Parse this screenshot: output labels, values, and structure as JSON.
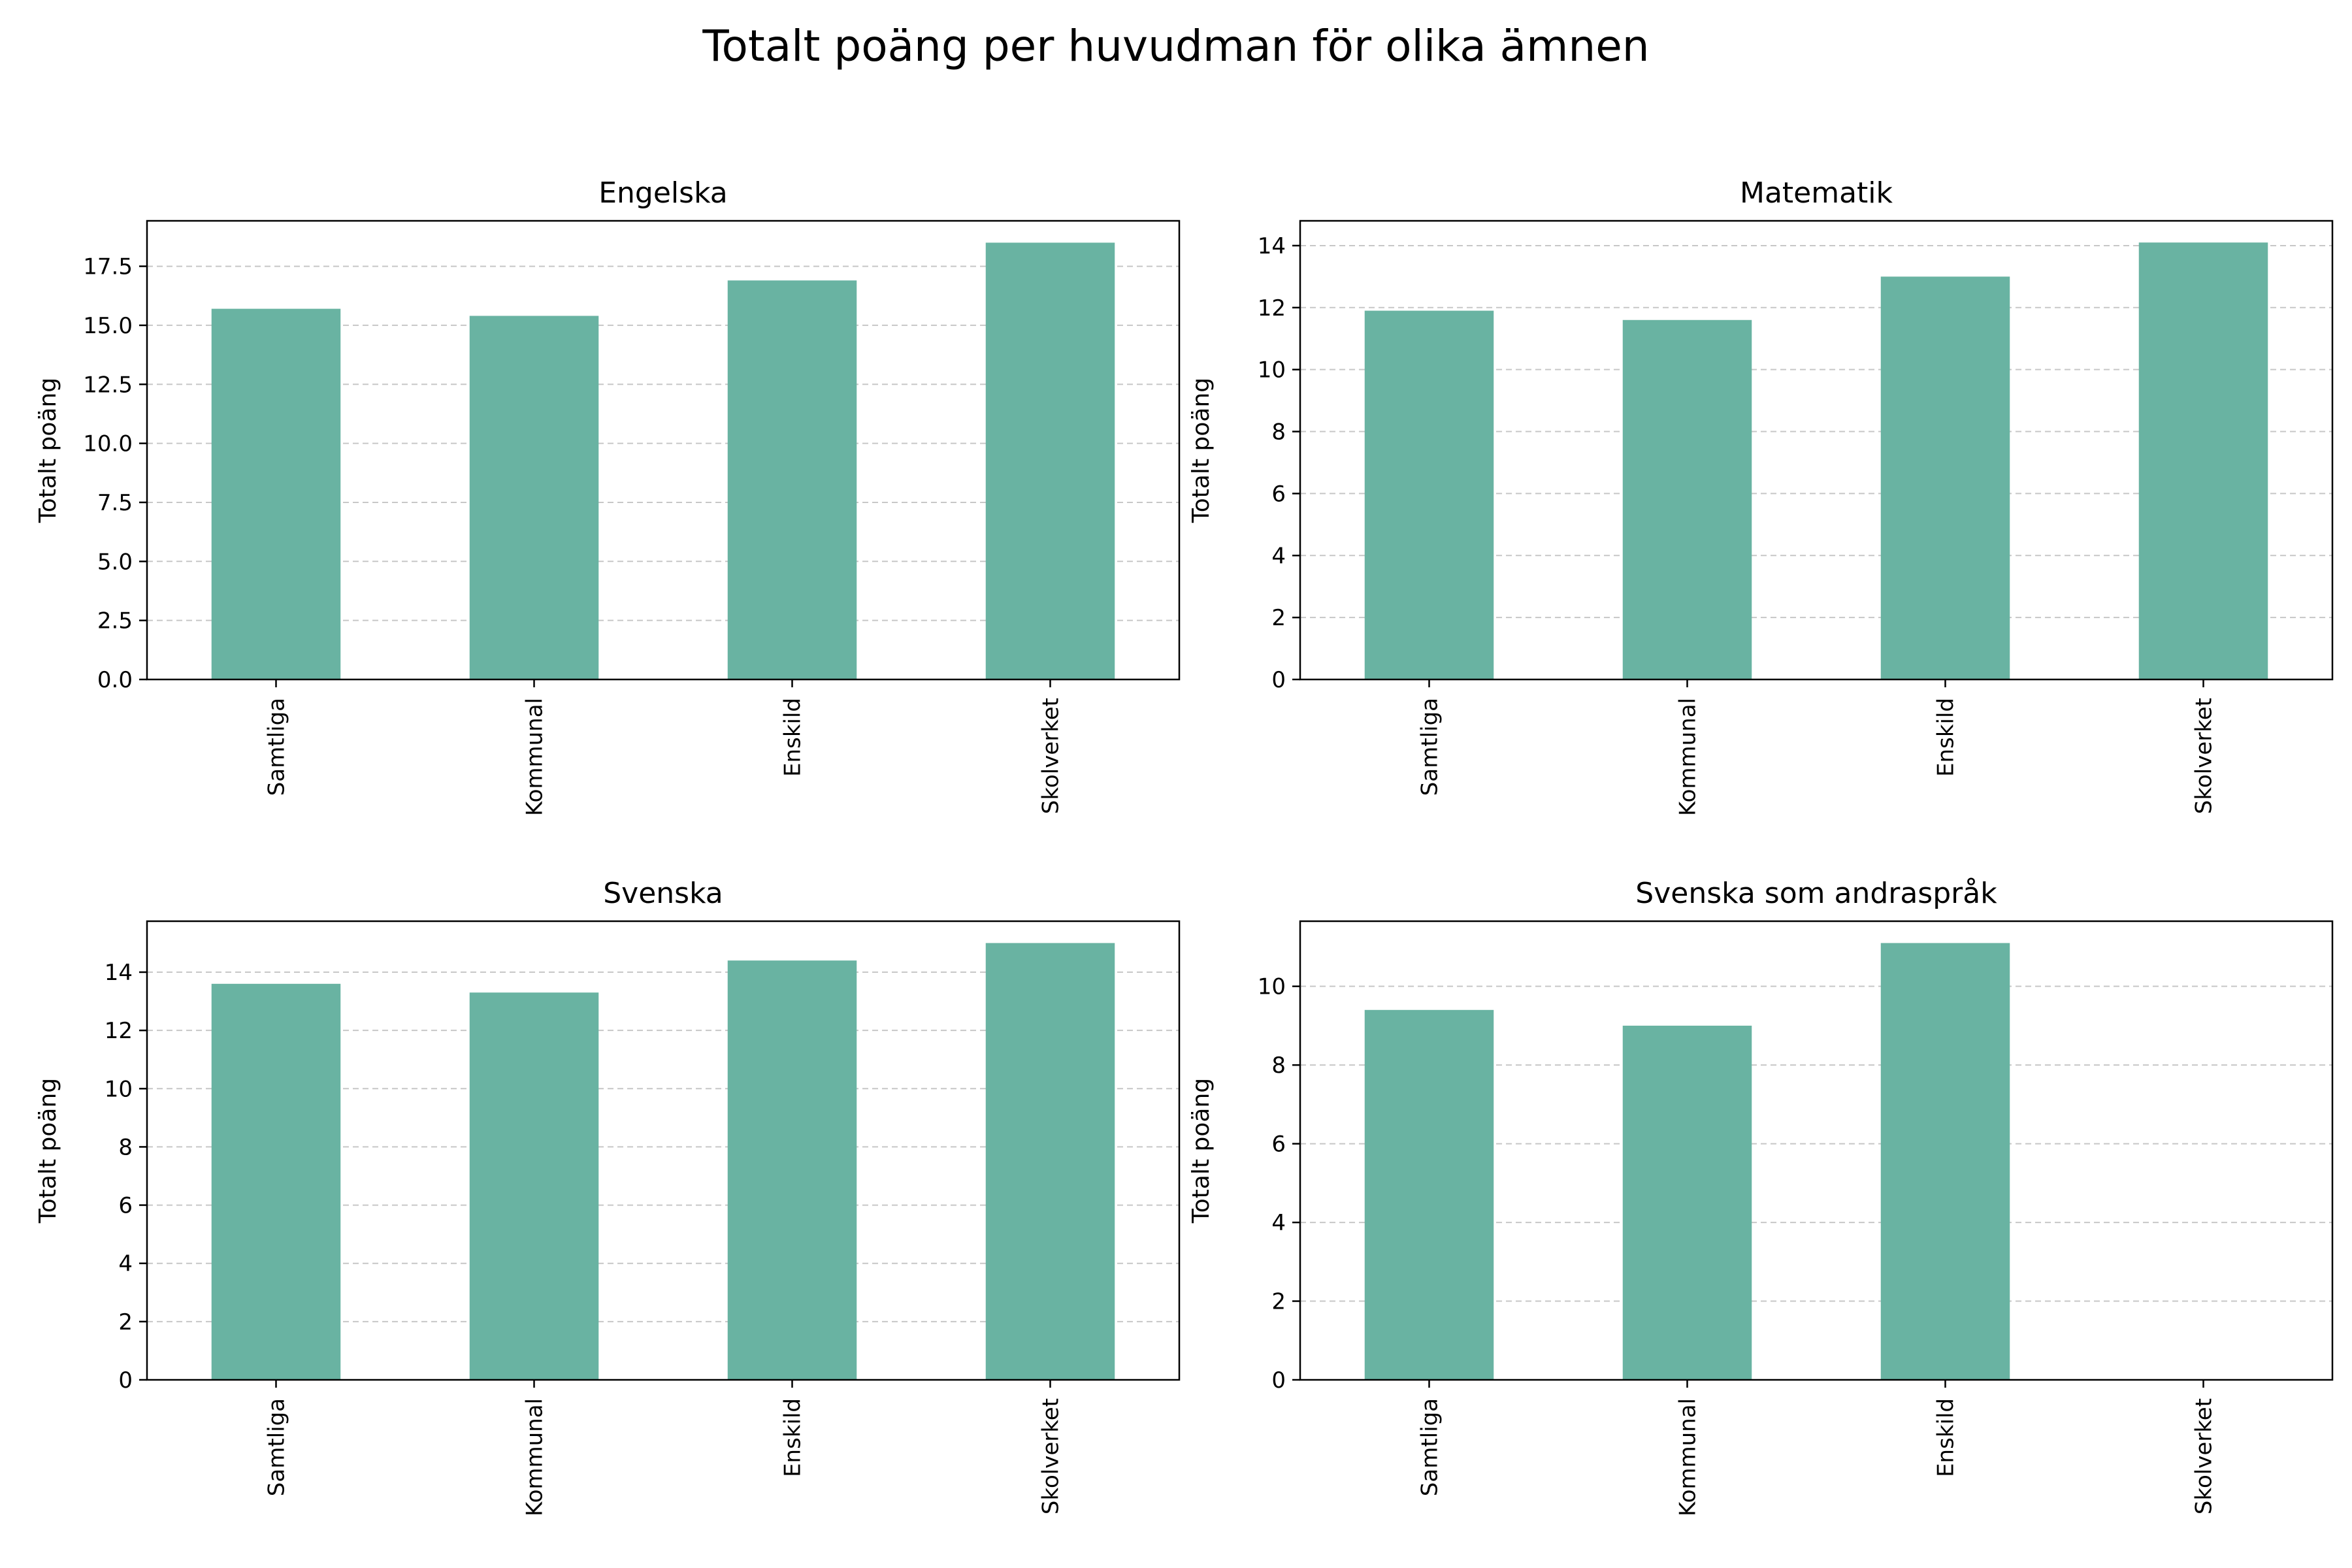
{
  "figure": {
    "title": "Totalt poäng per huvudman för olika ämnen"
  },
  "chart_data": [
    {
      "type": "bar",
      "title": "Engelska",
      "xlabel": "",
      "ylabel": "Totalt poäng",
      "categories": [
        "Samtliga",
        "Kommunal",
        "Enskild",
        "Skolverket"
      ],
      "values": [
        15.7,
        15.4,
        16.9,
        18.5
      ],
      "ylim": [
        0,
        19.425
      ],
      "yticks": [
        0.0,
        2.5,
        5.0,
        7.5,
        10.0,
        12.5,
        15.0,
        17.5
      ],
      "ytick_labels": [
        "0.0",
        "2.5",
        "5.0",
        "7.5",
        "10.0",
        "12.5",
        "15.0",
        "17.5"
      ],
      "grid": "y-dashed",
      "bar_color": "#69b3a2"
    },
    {
      "type": "bar",
      "title": "Matematik",
      "xlabel": "",
      "ylabel": "Totalt poäng",
      "categories": [
        "Samtliga",
        "Kommunal",
        "Enskild",
        "Skolverket"
      ],
      "values": [
        11.9,
        11.6,
        13.0,
        14.1
      ],
      "ylim": [
        0,
        14.8
      ],
      "yticks": [
        0,
        2,
        4,
        6,
        8,
        10,
        12,
        14
      ],
      "ytick_labels": [
        "0",
        "2",
        "4",
        "6",
        "8",
        "10",
        "12",
        "14"
      ],
      "grid": "y-dashed",
      "bar_color": "#69b3a2"
    },
    {
      "type": "bar",
      "title": "Svenska",
      "xlabel": "",
      "ylabel": "Totalt poäng",
      "categories": [
        "Samtliga",
        "Kommunal",
        "Enskild",
        "Skolverket"
      ],
      "values": [
        13.6,
        13.3,
        14.4,
        15.0
      ],
      "ylim": [
        0,
        15.75
      ],
      "yticks": [
        0,
        2,
        4,
        6,
        8,
        10,
        12,
        14
      ],
      "ytick_labels": [
        "0",
        "2",
        "4",
        "6",
        "8",
        "10",
        "12",
        "14"
      ],
      "grid": "y-dashed",
      "bar_color": "#69b3a2"
    },
    {
      "type": "bar",
      "title": "Svenska som andraspråk",
      "xlabel": "",
      "ylabel": "Totalt poäng",
      "categories": [
        "Samtliga",
        "Kommunal",
        "Enskild",
        "Skolverket"
      ],
      "values": [
        9.4,
        9.0,
        11.1,
        0
      ],
      "ylim": [
        0,
        11.655
      ],
      "yticks": [
        0,
        2,
        4,
        6,
        8,
        10
      ],
      "ytick_labels": [
        "0",
        "2",
        "4",
        "6",
        "8",
        "10"
      ],
      "grid": "y-dashed",
      "bar_color": "#69b3a2"
    }
  ]
}
